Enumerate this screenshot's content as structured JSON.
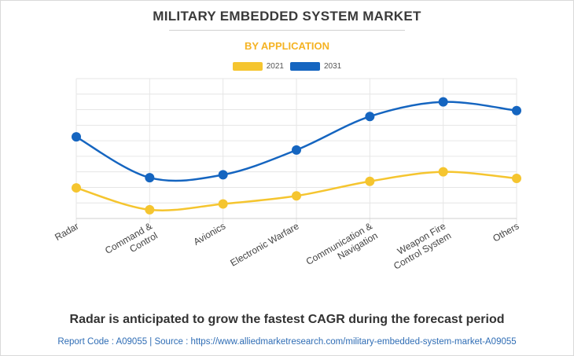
{
  "header": {
    "title": "MILITARY EMBEDDED SYSTEM MARKET",
    "subtitle": "BY APPLICATION"
  },
  "footer": {
    "headline": "Radar is anticipated to grow the fastest CAGR during the forecast period",
    "source": "Report Code : A09055  |  Source : https://www.alliedmarketresearch.com/military-embedded-system-market-A09055"
  },
  "colors": {
    "series_2021": "#f5c52f",
    "series_2031": "#1565c0",
    "grid": "#e6e6e6",
    "axis_text": "#444444"
  },
  "chart_data": {
    "type": "line",
    "smooth": true,
    "categories": [
      [
        "Radar"
      ],
      [
        "Command &",
        "Control"
      ],
      [
        "Avionics"
      ],
      [
        "Electronic Warfare"
      ],
      [
        "Communication &",
        "Navigation"
      ],
      [
        "Weapon Fire",
        "Control System"
      ],
      [
        "Others"
      ]
    ],
    "series": [
      {
        "name": "2021",
        "color": "#f5c52f",
        "values": [
          21,
          6,
          10,
          15.5,
          25.5,
          32,
          27.5
        ]
      },
      {
        "name": "2031",
        "color": "#1565c0",
        "values": [
          56,
          28,
          30,
          47,
          70,
          80,
          74
        ]
      }
    ],
    "ylim": [
      0,
      96
    ],
    "grid": true,
    "legend": "top-center",
    "y_tick_labels": false
  }
}
